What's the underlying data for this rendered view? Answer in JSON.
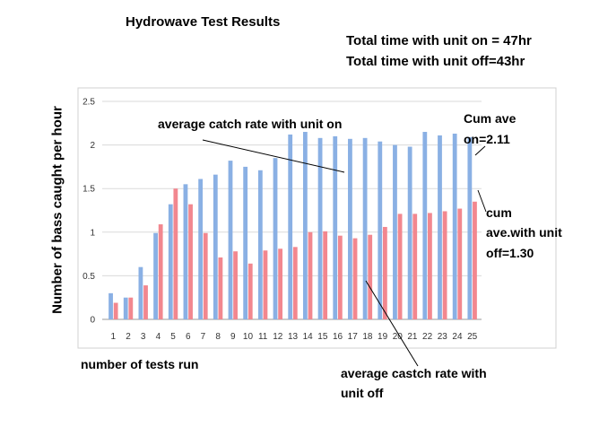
{
  "header": {
    "title": "Hydrowave Test Results",
    "summary_line_1": "Total time with unit on = 47hr",
    "summary_line_2": "Total time with unit off=43hr"
  },
  "annotations": {
    "on_rate": "average catch rate with unit on",
    "off_rate_1": "average castch rate with",
    "off_rate_2": "unit off",
    "cum_on_1": "Cum ave",
    "cum_on_2": "on=2.11",
    "cum_off_1": "cum",
    "cum_off_2": "ave.with unit",
    "cum_off_3": "off=1.30"
  },
  "chart_data": {
    "type": "bar",
    "title": "",
    "xlabel": "number of tests run",
    "ylabel": "Number of bass caught per hour",
    "ylim": [
      0,
      2.5
    ],
    "yticks": [
      "0",
      "0.5",
      "1",
      "1.5",
      "2",
      "2.5"
    ],
    "grid": true,
    "legend": "none",
    "categories": [
      "1",
      "2",
      "3",
      "4",
      "5",
      "6",
      "7",
      "8",
      "9",
      "10",
      "11",
      "12",
      "13",
      "14",
      "15",
      "16",
      "17",
      "18",
      "19",
      "20",
      "21",
      "22",
      "23",
      "24",
      "25"
    ],
    "series": [
      {
        "color": "#8ab0e4",
        "values": [
          0.3,
          0.25,
          0.6,
          0.99,
          1.32,
          1.55,
          1.61,
          1.66,
          1.82,
          1.75,
          1.71,
          1.85,
          2.12,
          2.15,
          2.08,
          2.1,
          2.07,
          2.08,
          2.04,
          2.0,
          1.98,
          2.15,
          2.11,
          2.13,
          2.09
        ]
      },
      {
        "color": "#f2878f",
        "values": [
          0.19,
          0.25,
          0.39,
          1.09,
          1.5,
          1.32,
          0.99,
          0.71,
          0.78,
          0.64,
          0.79,
          0.81,
          0.83,
          1.0,
          1.01,
          0.96,
          0.93,
          0.97,
          1.06,
          1.21,
          1.21,
          1.22,
          1.24,
          1.27,
          1.35
        ]
      }
    ]
  }
}
